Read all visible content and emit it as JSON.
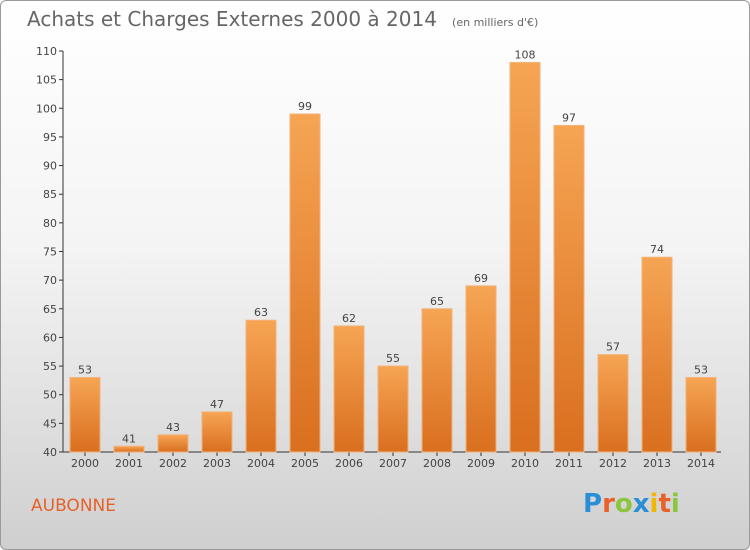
{
  "header": {
    "title": "Achats et Charges Externes 2000 à 2014",
    "unit": "(en milliers d'€)"
  },
  "footer": {
    "town": "AUBONNE",
    "logo": [
      "P",
      "r",
      "o",
      "x",
      "i",
      "t",
      "i"
    ]
  },
  "colors": {
    "bar_light": "#f6a553",
    "bar_dark": "#d96f1f",
    "town": "#e8612a",
    "logo": [
      "#2a8fd6",
      "#e8612a",
      "#8cc63f",
      "#2a8fd6",
      "#f2b705",
      "#e8612a",
      "#8cc63f"
    ]
  },
  "chart_data": {
    "type": "bar",
    "title": "Achats et Charges Externes 2000 à 2014",
    "subtitle": "(en milliers d'€)",
    "categories": [
      "2000",
      "2001",
      "2002",
      "2003",
      "2004",
      "2005",
      "2006",
      "2007",
      "2008",
      "2009",
      "2010",
      "2011",
      "2012",
      "2013",
      "2014"
    ],
    "values": [
      53,
      41,
      43,
      47,
      63,
      99,
      62,
      55,
      65,
      69,
      108,
      97,
      57,
      74,
      53
    ],
    "ylim": [
      40,
      110
    ],
    "yticks": [
      40,
      45,
      50,
      55,
      60,
      65,
      70,
      75,
      80,
      85,
      90,
      95,
      100,
      105,
      110
    ],
    "grid": false,
    "data_labels": true
  }
}
